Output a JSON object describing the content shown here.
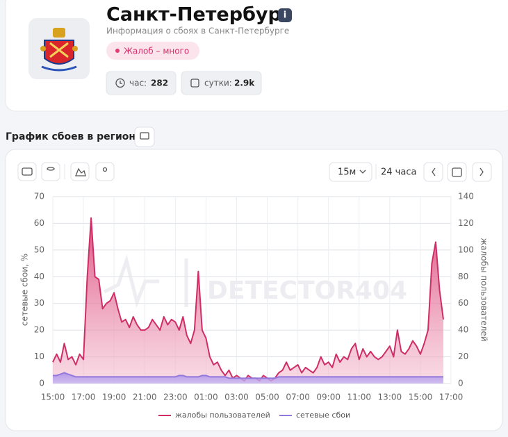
{
  "header": {
    "title": "Санкт-Петербург",
    "subtitle": "Информация о сбоях в Санкт-Петербурге",
    "badge": "Жалоб – много",
    "stats": [
      {
        "label": "час:",
        "value": "282"
      },
      {
        "label": "сутки:",
        "value": "2.9k"
      }
    ]
  },
  "section_title": "График сбоев в регионе",
  "controls": {
    "interval": "15м",
    "range": "24 часа"
  },
  "watermark": "DETECTOR404",
  "chart_data": {
    "type": "line",
    "y_label": "сетевые сбои, %",
    "y2_label": "жалобы пользователей",
    "x": [
      0,
      0.25,
      0.5,
      0.75,
      1,
      1.25,
      1.5,
      1.75,
      2,
      2.25,
      2.5,
      2.75,
      3,
      3.25,
      3.5,
      3.75,
      4,
      4.25,
      4.5,
      4.75,
      5,
      5.25,
      5.5,
      5.75,
      6,
      6.25,
      6.5,
      6.75,
      7,
      7.25,
      7.5,
      7.75,
      8,
      8.25,
      8.5,
      8.75,
      9,
      9.25,
      9.5,
      9.75,
      10,
      10.25,
      10.5,
      10.75,
      11,
      11.25,
      11.5,
      11.75,
      12,
      12.25,
      12.5,
      12.75,
      13,
      13.25,
      13.5,
      13.75,
      14,
      14.25,
      14.5,
      14.75,
      15,
      15.25,
      15.5,
      15.75,
      16,
      16.25,
      16.5,
      16.75,
      17,
      17.25,
      17.5,
      17.75,
      18,
      18.25,
      18.5,
      18.75,
      19,
      19.25,
      19.5,
      19.75,
      20,
      20.25,
      20.5,
      20.75,
      21,
      21.25,
      21.5,
      21.75,
      22,
      22.25,
      22.5,
      22.75,
      23,
      23.25,
      23.5,
      23.75,
      24,
      24.25,
      24.5,
      24.75,
      25,
      25.25,
      25.5
    ],
    "series": [
      {
        "name": "жалобы пользователей",
        "color": "#cf2d66",
        "axis": "y2",
        "values": [
          16,
          22,
          16,
          30,
          18,
          20,
          14,
          22,
          18,
          80,
          124,
          80,
          78,
          56,
          60,
          62,
          68,
          56,
          46,
          48,
          42,
          50,
          44,
          40,
          40,
          42,
          48,
          44,
          40,
          50,
          44,
          48,
          46,
          40,
          50,
          36,
          30,
          40,
          84,
          40,
          34,
          20,
          14,
          16,
          10,
          6,
          10,
          4,
          6,
          4,
          2,
          6,
          4,
          4,
          2,
          6,
          4,
          2,
          4,
          8,
          10,
          16,
          10,
          12,
          14,
          8,
          12,
          10,
          8,
          12,
          20,
          14,
          16,
          12,
          22,
          16,
          20,
          18,
          26,
          30,
          18,
          26,
          20,
          24,
          20,
          18,
          20,
          24,
          28,
          20,
          40,
          24,
          22,
          26,
          32,
          28,
          22,
          30,
          40,
          90,
          106,
          70,
          48
        ]
      },
      {
        "name": "сетевые сбои",
        "color": "#9277dc",
        "values": [
          3,
          3,
          3.5,
          4,
          3.5,
          3,
          2.5,
          2.5,
          2.5,
          2.5,
          2.5,
          2.5,
          2.5,
          2.5,
          2.5,
          2.5,
          2.5,
          2.5,
          2.5,
          2.5,
          2.5,
          2.5,
          2.5,
          2.5,
          2.5,
          2.5,
          2.5,
          2.5,
          2.5,
          2.5,
          2.5,
          2.5,
          2.5,
          3,
          3,
          2.5,
          2.5,
          2.5,
          2.5,
          3,
          3,
          2.5,
          2.5,
          2.5,
          2.5,
          2.5,
          2,
          2,
          2,
          2,
          2,
          2,
          2,
          2,
          2,
          2,
          2,
          2,
          2,
          2.5,
          2.5,
          2.5,
          2.5,
          2.5,
          2.5,
          2.5,
          2.5,
          2.5,
          2.5,
          2.5,
          2.5,
          2.5,
          2.5,
          2.5,
          2.5,
          2.5,
          2.5,
          2.5,
          2.5,
          2.5,
          2.5,
          2.5,
          2.5,
          2.5,
          2.5,
          2.5,
          2.5,
          2.5,
          2.5,
          2.5,
          2.5,
          2.5,
          2.5,
          2.5,
          2.5,
          2.5,
          2.5,
          2.5,
          2.5,
          2.5,
          2.5,
          2.5,
          2.5
        ]
      }
    ],
    "xlim": [
      0,
      26
    ],
    "xticks": [
      {
        "value": 0,
        "label": "15:00"
      },
      {
        "value": 2,
        "label": "17:00"
      },
      {
        "value": 4,
        "label": "19:00"
      },
      {
        "value": 6,
        "label": "21:00"
      },
      {
        "value": 8,
        "label": "23:00"
      },
      {
        "value": 10,
        "label": "01:00"
      },
      {
        "value": 12,
        "label": "03:00"
      },
      {
        "value": 14,
        "label": "05:00"
      },
      {
        "value": 16,
        "label": "07:00"
      },
      {
        "value": 18,
        "label": "09:00"
      },
      {
        "value": 20,
        "label": "11:00"
      },
      {
        "value": 22,
        "label": "13:00"
      },
      {
        "value": 24,
        "label": "15:00"
      },
      {
        "value": 26,
        "label": "17:00"
      }
    ],
    "ylim": [
      0,
      70
    ],
    "yticks": [
      0,
      10,
      20,
      30,
      40,
      50,
      60,
      70
    ],
    "y2lim": [
      0,
      140
    ],
    "y2ticks": [
      0,
      20,
      40,
      60,
      80,
      100,
      120,
      140
    ],
    "grid": true
  }
}
